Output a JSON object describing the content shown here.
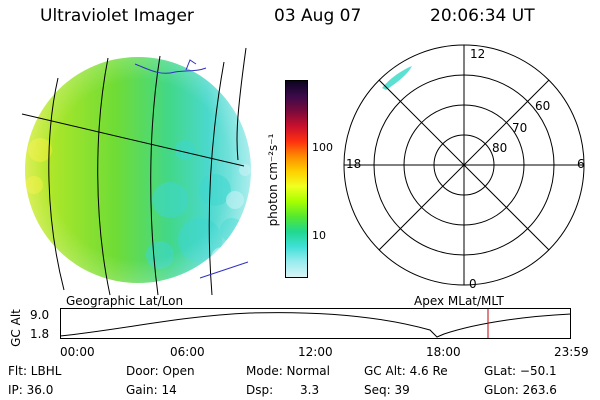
{
  "header": {
    "title": "Ultraviolet Imager",
    "date": "03 Aug 07",
    "time": "20:06:34 UT"
  },
  "colorbar": {
    "unit_label": "photon cm⁻²s⁻¹",
    "ticks": [
      "100",
      "10"
    ],
    "colors": [
      "#0b0420",
      "#3a0a4a",
      "#7a0a3c",
      "#c8102e",
      "#ff3010",
      "#ff8c00",
      "#ffd000",
      "#f0ff20",
      "#a6ff00",
      "#55e830",
      "#20d890",
      "#40e0d8",
      "#9aecef",
      "#d8f4f6"
    ]
  },
  "polar_plot": {
    "mlt_labels": {
      "top": "12",
      "left": "18",
      "right": "6",
      "bottom": "0"
    },
    "lat_labels": [
      "60",
      "70",
      "80"
    ]
  },
  "timeline": {
    "left_label": "Geographic Lat/Lon",
    "right_label": "Apex MLat/MLT",
    "ylabel": "GC Alt",
    "y_ticks": [
      "9.0",
      "1.8"
    ],
    "x_ticks": [
      "00:00",
      "06:00",
      "12:00",
      "18:00",
      "23:59"
    ],
    "cursor_color": "#c00000",
    "curve_color": "#000000"
  },
  "meta": {
    "flt": "Flt: LBHL",
    "ip": "IP: 36.0",
    "door": "Door: Open",
    "gain": "Gain: 14",
    "mode": "Mode: Normal",
    "dsp_label": "Dsp:",
    "dsp_value": "3.3",
    "gc_alt": "GC Alt: 4.6 Re",
    "seq": "Seq: 39",
    "glat": "GLat: −50.1",
    "glon": "GLon: 263.6"
  }
}
